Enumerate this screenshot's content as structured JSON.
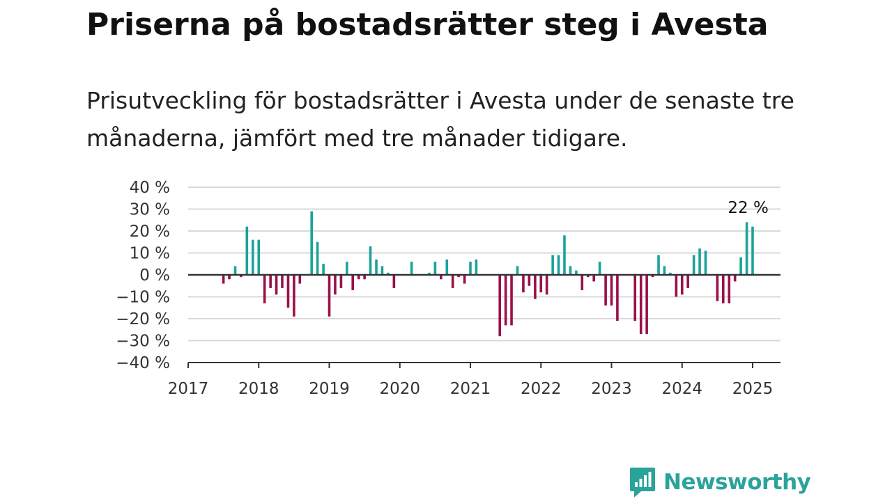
{
  "title": "Priserna på bostadsrätter steg i Avesta",
  "subtitle": "Prisutveckling för bostadsrätter i Avesta under de senaste tre månaderna, jämfört med tre månader tidigare.",
  "brand": {
    "name": "Newsworthy",
    "icon": "newsworthy-logo-icon",
    "color": "#2aa39a"
  },
  "colors": {
    "positive": "#1aa39a",
    "negative": "#9b1048",
    "grid": "#d9d9d9",
    "axis": "#333333"
  },
  "chart_data": {
    "type": "bar",
    "title": "",
    "xlabel": "",
    "ylabel": "",
    "x_unit": "year (fractional, monthly observations)",
    "ylim": [
      -40,
      40
    ],
    "xlim": [
      2017,
      2025.45
    ],
    "y_ticks": [
      40,
      30,
      20,
      10,
      0,
      -10,
      -20,
      -30,
      -40
    ],
    "y_tick_labels": [
      "40 %",
      "30 %",
      "20 %",
      "10 %",
      "0 %",
      "−10 %",
      "−20 %",
      "−30 %",
      "−40 %"
    ],
    "x_ticks": [
      2017,
      2018,
      2019,
      2020,
      2021,
      2022,
      2023,
      2024,
      2025
    ],
    "x_tick_labels": [
      "2017",
      "2018",
      "2019",
      "2020",
      "2021",
      "2022",
      "2023",
      "2024",
      "2025"
    ],
    "grid": true,
    "annotation": {
      "text": "22 %",
      "x": 2024.917
    },
    "series": [
      {
        "values": [
          {
            "x": 2017.5,
            "y": -4
          },
          {
            "x": 2017.583,
            "y": -2
          },
          {
            "x": 2017.667,
            "y": 4
          },
          {
            "x": 2017.75,
            "y": -1
          },
          {
            "x": 2017.833,
            "y": 22
          },
          {
            "x": 2017.917,
            "y": 16
          },
          {
            "x": 2018.0,
            "y": 16
          },
          {
            "x": 2018.083,
            "y": -13
          },
          {
            "x": 2018.167,
            "y": -6
          },
          {
            "x": 2018.25,
            "y": -9
          },
          {
            "x": 2018.333,
            "y": -6
          },
          {
            "x": 2018.417,
            "y": -15
          },
          {
            "x": 2018.5,
            "y": -19
          },
          {
            "x": 2018.583,
            "y": -4
          },
          {
            "x": 2018.75,
            "y": 29
          },
          {
            "x": 2018.833,
            "y": 15
          },
          {
            "x": 2018.917,
            "y": 5
          },
          {
            "x": 2019.0,
            "y": -19
          },
          {
            "x": 2019.083,
            "y": -9
          },
          {
            "x": 2019.167,
            "y": -6
          },
          {
            "x": 2019.25,
            "y": 6
          },
          {
            "x": 2019.333,
            "y": -7
          },
          {
            "x": 2019.417,
            "y": -2
          },
          {
            "x": 2019.5,
            "y": -2
          },
          {
            "x": 2019.583,
            "y": 13
          },
          {
            "x": 2019.667,
            "y": 7
          },
          {
            "x": 2019.75,
            "y": 4
          },
          {
            "x": 2019.833,
            "y": 1
          },
          {
            "x": 2019.917,
            "y": -6
          },
          {
            "x": 2020.167,
            "y": 6
          },
          {
            "x": 2020.417,
            "y": 1
          },
          {
            "x": 2020.5,
            "y": 6
          },
          {
            "x": 2020.583,
            "y": -2
          },
          {
            "x": 2020.667,
            "y": 7
          },
          {
            "x": 2020.75,
            "y": -6
          },
          {
            "x": 2020.833,
            "y": -1
          },
          {
            "x": 2020.917,
            "y": -4
          },
          {
            "x": 2021.0,
            "y": 6
          },
          {
            "x": 2021.083,
            "y": 7
          },
          {
            "x": 2021.417,
            "y": -28
          },
          {
            "x": 2021.5,
            "y": -23
          },
          {
            "x": 2021.583,
            "y": -23
          },
          {
            "x": 2021.667,
            "y": 4
          },
          {
            "x": 2021.75,
            "y": -8
          },
          {
            "x": 2021.833,
            "y": -5
          },
          {
            "x": 2021.917,
            "y": -11
          },
          {
            "x": 2022.0,
            "y": -8
          },
          {
            "x": 2022.083,
            "y": -9
          },
          {
            "x": 2022.167,
            "y": 9
          },
          {
            "x": 2022.25,
            "y": 9
          },
          {
            "x": 2022.333,
            "y": 18
          },
          {
            "x": 2022.417,
            "y": 4
          },
          {
            "x": 2022.5,
            "y": 2
          },
          {
            "x": 2022.583,
            "y": -7
          },
          {
            "x": 2022.667,
            "y": -1
          },
          {
            "x": 2022.75,
            "y": -3
          },
          {
            "x": 2022.833,
            "y": 6
          },
          {
            "x": 2022.917,
            "y": -14
          },
          {
            "x": 2023.0,
            "y": -14
          },
          {
            "x": 2023.083,
            "y": -21
          },
          {
            "x": 2023.333,
            "y": -21
          },
          {
            "x": 2023.417,
            "y": -27
          },
          {
            "x": 2023.5,
            "y": -27
          },
          {
            "x": 2023.583,
            "y": -1
          },
          {
            "x": 2023.667,
            "y": 9
          },
          {
            "x": 2023.75,
            "y": 4
          },
          {
            "x": 2023.833,
            "y": 1
          },
          {
            "x": 2023.917,
            "y": -10
          },
          {
            "x": 2024.0,
            "y": -9
          },
          {
            "x": 2024.083,
            "y": -6
          },
          {
            "x": 2024.167,
            "y": 9
          },
          {
            "x": 2024.25,
            "y": 12
          },
          {
            "x": 2024.333,
            "y": 11
          },
          {
            "x": 2024.5,
            "y": -12
          },
          {
            "x": 2024.583,
            "y": -13
          },
          {
            "x": 2024.667,
            "y": -13
          },
          {
            "x": 2024.75,
            "y": -3
          },
          {
            "x": 2024.833,
            "y": 8
          },
          {
            "x": 2024.917,
            "y": 24
          },
          {
            "x": 2025.0,
            "y": 22
          }
        ]
      }
    ]
  }
}
